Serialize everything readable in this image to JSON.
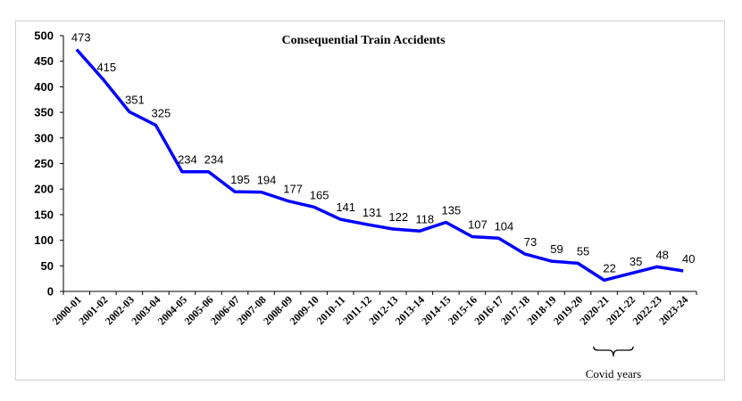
{
  "chart_data": {
    "type": "line",
    "title": "Consequential Train Accidents",
    "xlabel": "",
    "ylabel": "",
    "ylim": [
      0,
      500
    ],
    "yticks": [
      0,
      50,
      100,
      150,
      200,
      250,
      300,
      350,
      400,
      450,
      500
    ],
    "grid": false,
    "legend": "none",
    "line_color": "#0000ff",
    "categories": [
      "2000-01",
      "2001-02",
      "2002-03",
      "2003-04",
      "2004-05",
      "2005-06",
      "2006-07",
      "2007-08",
      "2008-09",
      "2009-10",
      "2010-11",
      "2011-12",
      "2012-13",
      "2013-14",
      "2014-15",
      "2015-16",
      "2016-17",
      "2017-18",
      "2018-19",
      "2019-20",
      "2020-21",
      "2021-22",
      "2022-23",
      "2023-24"
    ],
    "series": [
      {
        "values": [
          473,
          415,
          351,
          325,
          234,
          234,
          195,
          194,
          177,
          165,
          141,
          131,
          122,
          118,
          135,
          107,
          104,
          73,
          59,
          55,
          22,
          35,
          48,
          40
        ]
      }
    ],
    "annotations": [
      {
        "text": "Covid years",
        "from": "2020-21",
        "to": "2021-22"
      }
    ]
  }
}
